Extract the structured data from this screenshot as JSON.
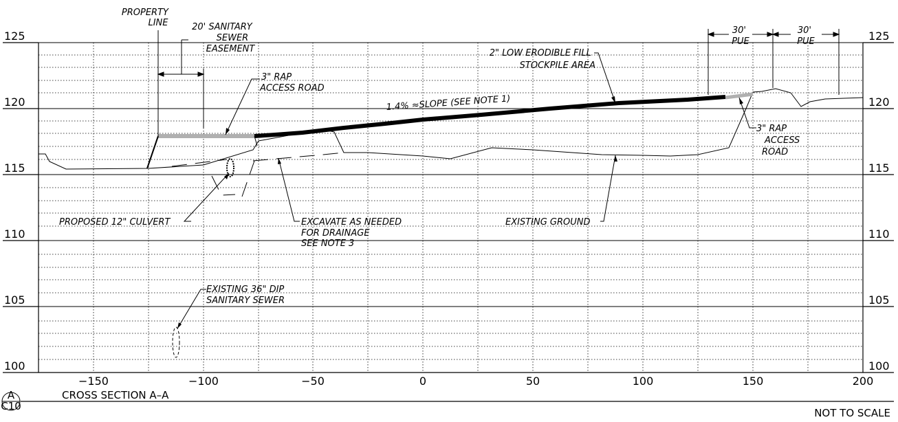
{
  "section": {
    "badge_top": "A",
    "badge_bottom": "C10",
    "title": "CROSS SECTION A–A",
    "scale_note": "NOT TO SCALE"
  },
  "axis": {
    "y_labels": [
      "125",
      "120",
      "115",
      "110",
      "105",
      "100"
    ],
    "x_labels": [
      "−150",
      "−100",
      "−50",
      "0",
      "50",
      "100",
      "150",
      "200"
    ]
  },
  "callouts": {
    "property_line": [
      "PROPERTY",
      "LINE"
    ],
    "sanitary_easement": [
      "20' SANITARY",
      "SEWER",
      "EASEMENT"
    ],
    "rap_road_left": [
      "3\" RAP",
      "ACCESS ROAD"
    ],
    "fill_stockpile": [
      "2\" LOW ERODIBLE FILL",
      "STOCKPILE AREA"
    ],
    "pue_left": [
      "30'",
      "PUE"
    ],
    "pue_right": [
      "30'",
      "PUE"
    ],
    "slope": "1.4% ≈SLOPE (SEE NOTE 1)",
    "rap_road_right": [
      "3\" RAP",
      "ACCESS",
      "ROAD"
    ],
    "culvert": "PROPOSED 12\" CULVERT",
    "excavate": [
      "EXCAVATE AS NEEDED",
      "FOR DRAINAGE",
      "SEE NOTE 3"
    ],
    "existing_ground": "EXISTING GROUND",
    "sewer_36": [
      "EXISTING 36\" DIP",
      "SANITARY SEWER"
    ]
  }
}
